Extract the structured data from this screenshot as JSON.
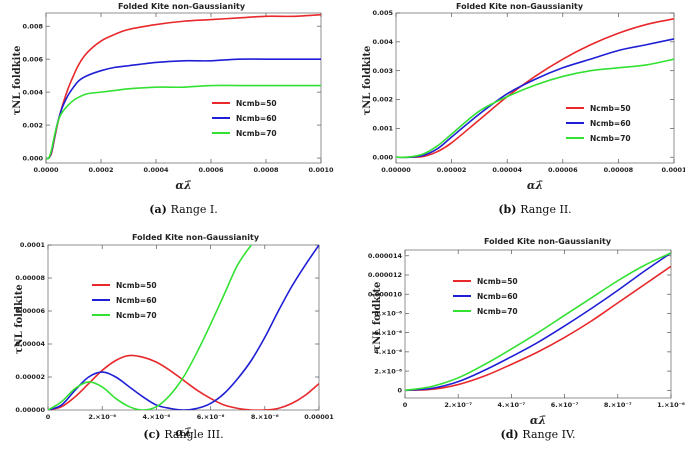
{
  "chart_data": [
    {
      "type": "line",
      "panel_label": "(a)",
      "caption": "Range I.",
      "title": "Folded Kite non-Gaussianity",
      "xlabel": "αλ̄",
      "ylabel": "τNL foldkite",
      "xlim": [
        0,
        0.001
      ],
      "ylim": [
        -0.0003,
        0.0088
      ],
      "xticks": [
        0,
        0.0002,
        0.0004,
        0.0006,
        0.0008,
        0.001
      ],
      "xtick_labels": [
        "0.0000",
        "0.0002",
        "0.0004",
        "0.0006",
        "0.0008",
        "0.0010"
      ],
      "yticks": [
        0,
        0.002,
        0.004,
        0.006,
        0.008
      ],
      "ytick_labels": [
        "0.000",
        "0.002",
        "0.004",
        "0.006",
        "0.008"
      ],
      "legend_position": "center-right",
      "series": [
        {
          "name": "Ncmb=50",
          "color": "#e8282b",
          "x": [
            0,
            1e-05,
            2e-05,
            3e-05,
            4e-05,
            5e-05,
            6e-05,
            8e-05,
            0.0001,
            0.00012,
            0.00015,
            0.0002,
            0.00025,
            0.0003,
            0.0004,
            0.0005,
            0.0006,
            0.0007,
            0.0008,
            0.0009,
            0.001
          ],
          "y": [
            0,
            0,
            0.0003,
            0.0011,
            0.0019,
            0.0026,
            0.0032,
            0.0042,
            0.005,
            0.0057,
            0.0064,
            0.0071,
            0.0075,
            0.0078,
            0.0081,
            0.0083,
            0.0084,
            0.0085,
            0.0086,
            0.0086,
            0.0087
          ]
        },
        {
          "name": "Ncmb=60",
          "color": "#1f1fd6",
          "x": [
            0,
            1e-05,
            2e-05,
            3e-05,
            4e-05,
            5e-05,
            6e-05,
            8e-05,
            0.0001,
            0.00012,
            0.00015,
            0.0002,
            0.00025,
            0.0003,
            0.0004,
            0.0005,
            0.0006,
            0.0007,
            0.0008,
            0.0009,
            0.001
          ],
          "y": [
            0,
            0,
            0.0004,
            0.0012,
            0.002,
            0.0026,
            0.0031,
            0.0038,
            0.0043,
            0.0047,
            0.005,
            0.0053,
            0.0055,
            0.0056,
            0.0058,
            0.0059,
            0.0059,
            0.006,
            0.006,
            0.006,
            0.006
          ]
        },
        {
          "name": "Ncmb=70",
          "color": "#33e133",
          "x": [
            0,
            1e-05,
            2e-05,
            3e-05,
            4e-05,
            5e-05,
            6e-05,
            8e-05,
            0.0001,
            0.00012,
            0.00015,
            0.0002,
            0.00025,
            0.0003,
            0.0004,
            0.0005,
            0.0006,
            0.0007,
            0.0008,
            0.0009,
            0.001
          ],
          "y": [
            0,
            0,
            0.0005,
            0.0013,
            0.002,
            0.0025,
            0.0028,
            0.0032,
            0.0035,
            0.0037,
            0.0039,
            0.004,
            0.0041,
            0.0042,
            0.0043,
            0.0043,
            0.0044,
            0.0044,
            0.0044,
            0.0044,
            0.0044
          ]
        }
      ]
    },
    {
      "type": "line",
      "panel_label": "(b)",
      "caption": "Range II.",
      "title": "Folded Kite non-Gaussianity",
      "xlabel": "αλ̄",
      "ylabel": "τNL foldkite",
      "xlim": [
        0,
        0.0001
      ],
      "ylim": [
        -0.0002,
        0.005
      ],
      "xticks": [
        0,
        2e-05,
        4e-05,
        6e-05,
        8e-05,
        0.0001
      ],
      "xtick_labels": [
        "0.00000",
        "0.00002",
        "0.00004",
        "0.00006",
        "0.00008",
        "0.0001"
      ],
      "yticks": [
        0,
        0.001,
        0.002,
        0.003,
        0.004,
        0.005
      ],
      "ytick_labels": [
        "0.000",
        "0.001",
        "0.002",
        "0.003",
        "0.004",
        "0.005"
      ],
      "legend_position": "center-right",
      "series": [
        {
          "name": "Ncmb=50",
          "color": "#e8282b",
          "x": [
            0,
            5e-06,
            1e-05,
            1.5e-05,
            2e-05,
            3e-05,
            4e-05,
            5e-05,
            6e-05,
            7e-05,
            8e-05,
            9e-05,
            0.0001
          ],
          "y": [
            0,
            0,
            3e-05,
            0.0002,
            0.0005,
            0.0013,
            0.0021,
            0.0028,
            0.0034,
            0.0039,
            0.0043,
            0.0046,
            0.0048
          ]
        },
        {
          "name": "Ncmb=60",
          "color": "#1f1fd6",
          "x": [
            0,
            5e-06,
            1e-05,
            1.5e-05,
            2e-05,
            3e-05,
            4e-05,
            5e-05,
            6e-05,
            7e-05,
            8e-05,
            9e-05,
            0.0001
          ],
          "y": [
            0,
            0,
            7e-05,
            0.0003,
            0.0007,
            0.0015,
            0.0022,
            0.0027,
            0.0031,
            0.0034,
            0.0037,
            0.0039,
            0.0041
          ]
        },
        {
          "name": "Ncmb=70",
          "color": "#33e133",
          "x": [
            0,
            5e-06,
            1e-05,
            1.5e-05,
            2e-05,
            3e-05,
            4e-05,
            5e-05,
            6e-05,
            7e-05,
            8e-05,
            9e-05,
            0.0001
          ],
          "y": [
            0,
            1e-05,
            0.00012,
            0.0004,
            0.0008,
            0.0016,
            0.0021,
            0.0025,
            0.0028,
            0.003,
            0.0031,
            0.0032,
            0.0034
          ]
        }
      ]
    },
    {
      "type": "line",
      "panel_label": "(c)",
      "caption": "Rangle III.",
      "title": "Folded Kite non-Gaussianity",
      "xlabel": "αλ̄",
      "ylabel": "τNL foldkite",
      "xlim": [
        0,
        1e-05
      ],
      "ylim": [
        0,
        0.0001
      ],
      "xticks": [
        0,
        2e-06,
        4e-06,
        6e-06,
        8e-06,
        1e-05
      ],
      "xtick_labels": [
        "0",
        "2.×10⁻⁶",
        "4.×10⁻⁶",
        "6.×10⁻⁶",
        "8.×10⁻⁶",
        "0.00001"
      ],
      "yticks": [
        0,
        2e-05,
        4e-05,
        6e-05,
        8e-05,
        0.0001
      ],
      "ytick_labels": [
        "0.00000",
        "0.00002",
        "0.00004",
        "0.00006",
        "0.00008",
        "0.0001"
      ],
      "legend_position": "center-left",
      "series": [
        {
          "name": "Ncmb=50",
          "color": "#e8282b",
          "x": [
            0,
            5e-07,
            1e-06,
            1.5e-06,
            2e-06,
            2.5e-06,
            3e-06,
            3.5e-06,
            4e-06,
            4.5e-06,
            5e-06,
            5.5e-06,
            6e-06,
            6.5e-06,
            7e-06,
            7.5e-06,
            8e-06,
            8.5e-06,
            9e-06,
            9.5e-06,
            1e-05
          ],
          "y": [
            0,
            2e-06,
            8e-06,
            1.6e-05,
            2.4e-05,
            3e-05,
            3.3e-05,
            3.2e-05,
            2.9e-05,
            2.4e-05,
            1.8e-05,
            1.2e-05,
            7e-06,
            3e-06,
            1e-06,
            0,
            0,
            1e-06,
            4e-06,
            9e-06,
            1.6e-05
          ]
        },
        {
          "name": "Ncmb=60",
          "color": "#1f1fd6",
          "x": [
            0,
            5e-07,
            1e-06,
            1.5e-06,
            2e-06,
            2.5e-06,
            3e-06,
            3.5e-06,
            4e-06,
            4.5e-06,
            5e-06,
            5.5e-06,
            6e-06,
            6.5e-06,
            7e-06,
            7.5e-06,
            8e-06,
            8.5e-06,
            9e-06,
            9.5e-06,
            1e-05
          ],
          "y": [
            0,
            3e-06,
            1.2e-05,
            2e-05,
            2.3e-05,
            2e-05,
            1.4e-05,
            8e-06,
            3e-06,
            1e-06,
            0,
            1e-06,
            4e-06,
            1e-05,
            1.9e-05,
            3e-05,
            4.4e-05,
            6e-05,
            7.5e-05,
            8.8e-05,
            0.0001
          ]
        },
        {
          "name": "Ncmb=70",
          "color": "#33e133",
          "x": [
            0,
            5e-07,
            1e-06,
            1.5e-06,
            2e-06,
            2.5e-06,
            3e-06,
            3.5e-06,
            4e-06,
            4.5e-06,
            5e-06,
            5.5e-06,
            6e-06,
            6.5e-06,
            7e-06,
            7.5e-06
          ],
          "y": [
            0,
            5e-06,
            1.3e-05,
            1.7e-05,
            1.4e-05,
            7e-06,
            2e-06,
            0,
            2e-06,
            9e-06,
            2e-05,
            3.5e-05,
            5.2e-05,
            7e-05,
            8.8e-05,
            0.0001
          ]
        }
      ]
    },
    {
      "type": "line",
      "panel_label": "(d)",
      "caption": "Range IV.",
      "title": "Folded Kite non-Gaussianity",
      "xlabel": "αλ̄",
      "ylabel": "τNL foldkite",
      "xlim": [
        0,
        1e-06
      ],
      "ylim": [
        -8e-07,
        1.46e-05
      ],
      "xticks": [
        0,
        2e-07,
        4e-07,
        6e-07,
        8e-07,
        1e-06
      ],
      "xtick_labels": [
        "0",
        "2.×10⁻⁷",
        "4.×10⁻⁷",
        "6.×10⁻⁷",
        "8.×10⁻⁷",
        "1.×10⁻⁶"
      ],
      "yticks": [
        0,
        2e-06,
        4e-06,
        6e-06,
        8e-06,
        1e-05,
        1.2e-05,
        1.4e-05
      ],
      "ytick_labels": [
        "0",
        "2.×10⁻⁶",
        "4.×10⁻⁶",
        "6.×10⁻⁶",
        "8.×10⁻⁶",
        "0.000010",
        "0.000012",
        "0.000014"
      ],
      "legend_position": "top-left",
      "series": [
        {
          "name": "Ncmb=50",
          "color": "#e8282b",
          "x": [
            0,
            1e-07,
            2e-07,
            3e-07,
            4e-07,
            5e-07,
            6e-07,
            7e-07,
            8e-07,
            9e-07,
            1e-06
          ],
          "y": [
            0,
            1e-07,
            6e-07,
            1.5e-06,
            2.7e-06,
            4e-06,
            5.5e-06,
            7.2e-06,
            9.1e-06,
            1.1e-05,
            1.29e-05
          ]
        },
        {
          "name": "Ncmb=60",
          "color": "#1f1fd6",
          "x": [
            0,
            1e-07,
            2e-07,
            3e-07,
            4e-07,
            5e-07,
            6e-07,
            7e-07,
            8e-07,
            9e-07,
            1e-06
          ],
          "y": [
            0,
            2e-07,
            9e-07,
            2.1e-06,
            3.5e-06,
            5e-06,
            6.7e-06,
            8.5e-06,
            1.04e-05,
            1.24e-05,
            1.43e-05
          ]
        },
        {
          "name": "Ncmb=70",
          "color": "#33e133",
          "x": [
            0,
            1e-07,
            2e-07,
            3e-07,
            4e-07,
            5e-07,
            6e-07,
            7e-07,
            8e-07,
            9e-07,
            1e-06
          ],
          "y": [
            0,
            4e-07,
            1.3e-06,
            2.7e-06,
            4.3e-06,
            6e-06,
            7.8e-06,
            9.6e-06,
            1.14e-05,
            1.3e-05,
            1.43e-05
          ]
        }
      ]
    }
  ]
}
